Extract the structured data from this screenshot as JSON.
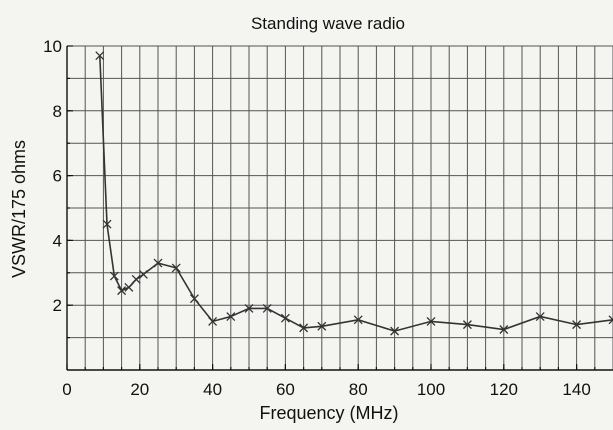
{
  "chart_data": {
    "type": "line",
    "title": "Standing wave radio",
    "xlabel": "Frequency (MHz)",
    "ylabel": "VSWR/175 ohms",
    "xlim": [
      0,
      150
    ],
    "ylim": [
      0,
      10
    ],
    "x_ticks": [
      0,
      20,
      40,
      60,
      80,
      100,
      120,
      140
    ],
    "y_ticks": [
      2,
      4,
      6,
      8,
      10
    ],
    "x_minor_step": 5,
    "y_minor_step": 1,
    "grid": true,
    "marker": "x",
    "series": [
      {
        "x": [
          9,
          11,
          13,
          15,
          17,
          19,
          21,
          25,
          30,
          35,
          40,
          45,
          50,
          55,
          60,
          65,
          70,
          80,
          90,
          100,
          110,
          120,
          130,
          140,
          150
        ],
        "y": [
          9.7,
          4.5,
          2.9,
          2.45,
          2.55,
          2.8,
          2.95,
          3.3,
          3.15,
          2.2,
          1.5,
          1.65,
          1.9,
          1.9,
          1.6,
          1.3,
          1.35,
          1.55,
          1.2,
          1.5,
          1.4,
          1.25,
          1.65,
          1.4,
          1.55
        ]
      }
    ]
  }
}
